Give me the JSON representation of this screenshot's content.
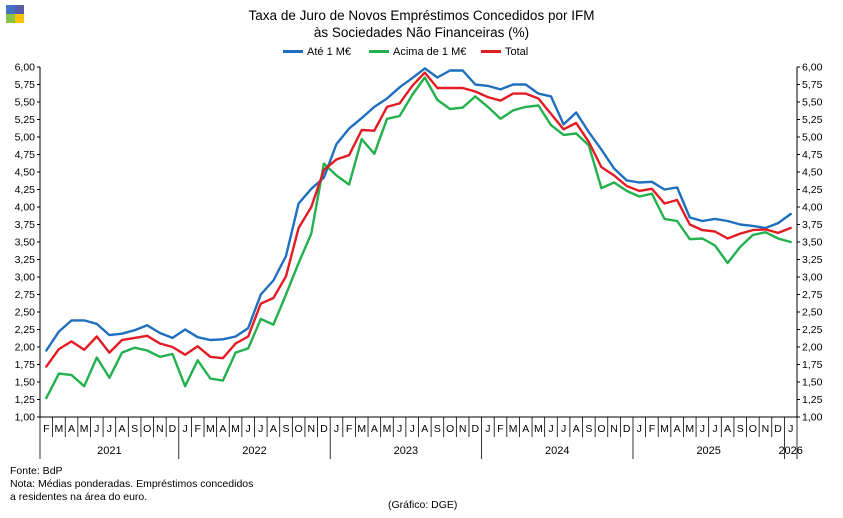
{
  "colors": {
    "logo": [
      "#4472c4",
      "#5b5ea6",
      "#8bc34a",
      "#ffc000"
    ],
    "axis": "#000000"
  },
  "chart_data": {
    "type": "line",
    "title": "Taxa de Juro de Novos Empréstimos Concedidos por IFM",
    "subtitle": "às Sociedades Não Financeiras (%)",
    "xlabel": "",
    "ylabel": "",
    "ylim": [
      1.0,
      6.0
    ],
    "ytick_step": 0.25,
    "yticks_right": true,
    "grid": false,
    "legend_position": "top",
    "month_labels": [
      "F",
      "M",
      "A",
      "M",
      "J",
      "J",
      "A",
      "S",
      "O",
      "N",
      "D",
      "J",
      "F",
      "M",
      "A",
      "M",
      "J",
      "J",
      "A",
      "S",
      "O",
      "N",
      "D",
      "J",
      "F",
      "M",
      "A",
      "M",
      "J",
      "J",
      "A",
      "S",
      "O",
      "N",
      "D",
      "J",
      "F",
      "M",
      "A",
      "M",
      "J",
      "J",
      "A",
      "S",
      "O",
      "N",
      "D",
      "J",
      "F",
      "M",
      "A",
      "M",
      "J",
      "J",
      "A",
      "S",
      "O",
      "N",
      "D",
      "J"
    ],
    "year_labels": [
      "2021",
      "2022",
      "2023",
      "2024",
      "2025",
      "2026"
    ],
    "series": [
      {
        "name": "Até 1 M€",
        "color": "#1f6fbf",
        "values": [
          1.95,
          2.22,
          2.38,
          2.38,
          2.33,
          2.17,
          2.19,
          2.24,
          2.31,
          2.2,
          2.13,
          2.25,
          2.14,
          2.1,
          2.11,
          2.15,
          2.27,
          2.75,
          2.95,
          3.3,
          4.05,
          4.26,
          4.42,
          4.9,
          5.12,
          5.27,
          5.43,
          5.55,
          5.71,
          5.84,
          5.98,
          5.85,
          5.95,
          5.95,
          5.75,
          5.73,
          5.68,
          5.75,
          5.75,
          5.62,
          5.58,
          5.18,
          5.35,
          5.07,
          4.82,
          4.55,
          4.38,
          4.35,
          4.36,
          4.25,
          4.28,
          3.85,
          3.8,
          3.83,
          3.8,
          3.75,
          3.73,
          3.7,
          3.77,
          3.9
        ]
      },
      {
        "name": "Acima de 1 M€",
        "color": "#22b14c",
        "values": [
          1.27,
          1.62,
          1.6,
          1.44,
          1.85,
          1.56,
          1.92,
          1.99,
          1.95,
          1.86,
          1.9,
          1.44,
          1.81,
          1.55,
          1.52,
          1.92,
          1.98,
          2.4,
          2.32,
          2.75,
          3.2,
          3.62,
          4.62,
          4.45,
          4.32,
          4.97,
          4.76,
          5.26,
          5.3,
          5.6,
          5.85,
          5.53,
          5.4,
          5.42,
          5.58,
          5.43,
          5.26,
          5.38,
          5.43,
          5.45,
          5.17,
          5.03,
          5.05,
          4.88,
          4.27,
          4.35,
          4.23,
          4.15,
          4.19,
          3.83,
          3.8,
          3.54,
          3.55,
          3.45,
          3.2,
          3.43,
          3.6,
          3.64,
          3.55,
          3.5
        ]
      },
      {
        "name": "Total",
        "color": "#e31b23",
        "values": [
          1.72,
          1.97,
          2.08,
          1.96,
          2.15,
          1.92,
          2.1,
          2.13,
          2.16,
          2.05,
          2.0,
          1.89,
          2.01,
          1.86,
          1.84,
          2.05,
          2.15,
          2.62,
          2.7,
          3.01,
          3.7,
          4.0,
          4.53,
          4.68,
          4.74,
          5.1,
          5.09,
          5.43,
          5.48,
          5.73,
          5.92,
          5.7,
          5.7,
          5.7,
          5.65,
          5.57,
          5.52,
          5.62,
          5.62,
          5.55,
          5.33,
          5.11,
          5.2,
          4.93,
          4.57,
          4.45,
          4.3,
          4.23,
          4.26,
          4.05,
          4.1,
          3.75,
          3.67,
          3.65,
          3.55,
          3.62,
          3.67,
          3.68,
          3.63,
          3.7
        ]
      }
    ]
  },
  "texts": {
    "source": "Fonte: BdP",
    "note1": "Nota: Médias ponderadas. Empréstimos concedidos",
    "note2": "a residentes na área do euro.",
    "credit": "(Gráfico: DGE)"
  }
}
